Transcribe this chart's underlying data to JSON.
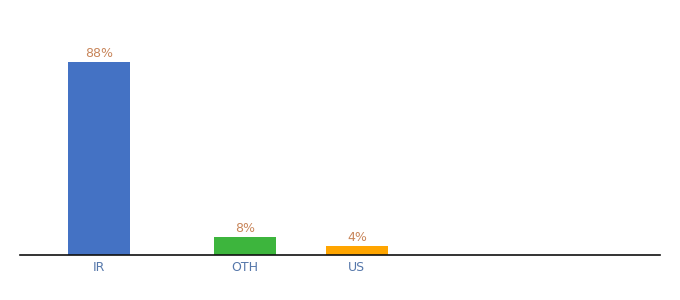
{
  "categories": [
    "IR",
    "OTH",
    "US"
  ],
  "values": [
    88,
    8,
    4
  ],
  "bar_colors": [
    "#4472c4",
    "#3db53d",
    "#ffa500"
  ],
  "label_color": "#c8855a",
  "labels": [
    "88%",
    "8%",
    "4%"
  ],
  "ylim": [
    0,
    100
  ],
  "background_color": "#ffffff",
  "label_fontsize": 9,
  "tick_fontsize": 9,
  "bar_width": 0.55,
  "x_positions": [
    0.5,
    1.8,
    2.8
  ]
}
